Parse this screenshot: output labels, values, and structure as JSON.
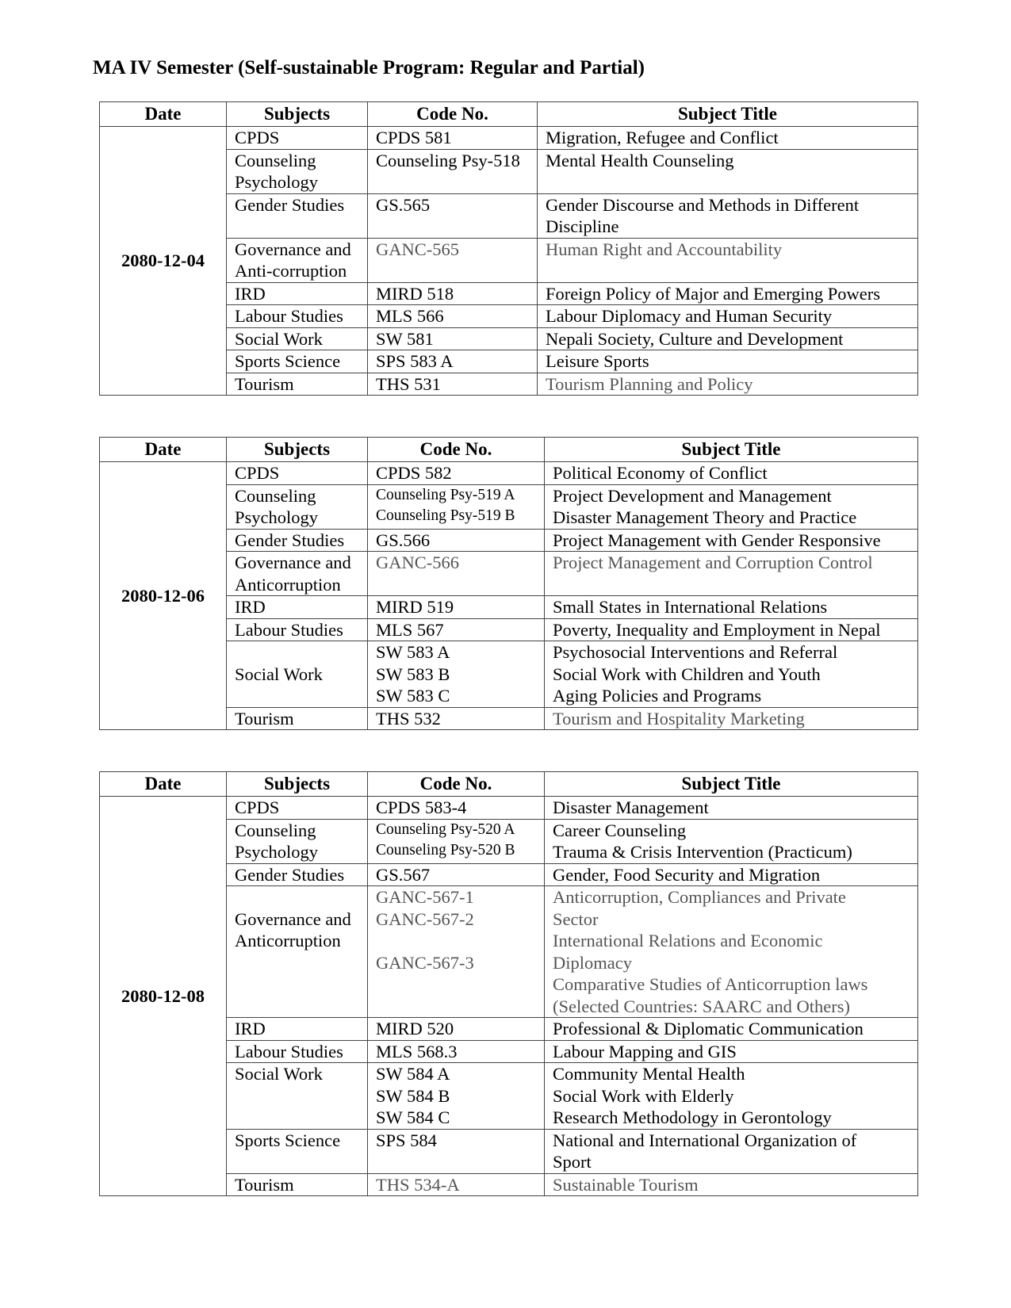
{
  "title": "MA IV Semester (Self-sustainable Program: Regular and Partial)",
  "headers": [
    "Date",
    "Subjects",
    "Code No.",
    "Subject Title"
  ],
  "tables": [
    {
      "date": "2080-12-04",
      "rows": [
        {
          "subject": [
            "CPDS"
          ],
          "code": [
            "CPDS 581"
          ],
          "title": [
            "Migration, Refugee and Conflict"
          ]
        },
        {
          "subject": [
            "Counseling",
            "Psychology"
          ],
          "code": [
            "Counseling Psy-518"
          ],
          "title": [
            "Mental Health Counseling"
          ]
        },
        {
          "subject": [
            "Gender Studies"
          ],
          "code": [
            "GS.565"
          ],
          "title": [
            "Gender Discourse and Methods in Different",
            "Discipline"
          ]
        },
        {
          "subject": [
            "Governance and",
            "Anti-corruption"
          ],
          "code": [
            "GANC-565"
          ],
          "title": [
            "Human Right and Accountability"
          ],
          "grey": true
        },
        {
          "subject": [
            "IRD"
          ],
          "code": [
            "MIRD 518"
          ],
          "title": [
            "Foreign Policy of Major and Emerging Powers"
          ]
        },
        {
          "subject": [
            "Labour Studies"
          ],
          "code": [
            "MLS 566"
          ],
          "title": [
            "Labour Diplomacy and Human Security"
          ]
        },
        {
          "subject": [
            "Social Work"
          ],
          "code": [
            "SW 581"
          ],
          "title": [
            "Nepali Society, Culture and Development"
          ]
        },
        {
          "subject": [
            "Sports Science"
          ],
          "code": [
            "SPS 583 A"
          ],
          "title": [
            "Leisure Sports"
          ]
        },
        {
          "subject": [
            "Tourism"
          ],
          "code": [
            "THS 531"
          ],
          "title": [
            "Tourism Planning and Policy"
          ],
          "greyTitle": true
        }
      ]
    },
    {
      "date": "2080-12-06",
      "rows": [
        {
          "subject": [
            "CPDS"
          ],
          "code": [
            "CPDS 582"
          ],
          "title": [
            "Political Economy of Conflict"
          ]
        },
        {
          "subject": [
            "Counseling",
            "Psychology"
          ],
          "code": [
            "Counseling Psy-519 A",
            "Counseling Psy-519 B"
          ],
          "smallCode": true,
          "title": [
            "Project Development and Management",
            "Disaster Management Theory and Practice"
          ]
        },
        {
          "subject": [
            "Gender Studies"
          ],
          "code": [
            "GS.566"
          ],
          "title": [
            "Project Management with Gender Responsive"
          ]
        },
        {
          "subject": [
            "Governance and",
            "Anticorruption"
          ],
          "code": [
            "GANC-566"
          ],
          "title": [
            "Project Management and Corruption Control"
          ],
          "grey": true
        },
        {
          "subject": [
            "IRD"
          ],
          "code": [
            "MIRD 519"
          ],
          "title": [
            "Small States in International Relations"
          ]
        },
        {
          "subject": [
            "Labour Studies"
          ],
          "code": [
            "MLS 567"
          ],
          "title": [
            "Poverty, Inequality and Employment in Nepal"
          ]
        },
        {
          "subject": [
            "",
            "Social Work"
          ],
          "code": [
            "SW 583 A",
            "SW 583 B",
            "SW 583 C"
          ],
          "title": [
            "Psychosocial Interventions and Referral",
            "Social Work with Children and Youth",
            "Aging Policies and Programs"
          ]
        },
        {
          "subject": [
            "Tourism"
          ],
          "code": [
            "THS 532"
          ],
          "title": [
            "Tourism and Hospitality Marketing"
          ],
          "greyTitle": true
        }
      ]
    },
    {
      "date": "2080-12-08",
      "rows": [
        {
          "subject": [
            "CPDS"
          ],
          "code": [
            "CPDS 583-4"
          ],
          "title": [
            "Disaster Management"
          ]
        },
        {
          "subject": [
            "Counseling",
            "Psychology"
          ],
          "code": [
            "Counseling Psy-520 A",
            "Counseling Psy-520 B"
          ],
          "smallCode": true,
          "title": [
            "Career Counseling",
            "Trauma & Crisis Intervention (Practicum)"
          ]
        },
        {
          "subject": [
            "Gender Studies"
          ],
          "code": [
            "GS.567"
          ],
          "title": [
            "Gender, Food Security and Migration"
          ]
        },
        {
          "subject": [
            "",
            "Governance and",
            "Anticorruption"
          ],
          "code": [
            "GANC-567-1",
            "GANC-567-2",
            "",
            "GANC-567-3"
          ],
          "title": [
            "Anticorruption, Compliances and Private",
            "Sector",
            "International Relations and Economic",
            "Diplomacy",
            "Comparative Studies of Anticorruption laws",
            "(Selected Countries: SAARC and Others)"
          ],
          "grey": true
        },
        {
          "subject": [
            "IRD"
          ],
          "code": [
            "MIRD 520"
          ],
          "title": [
            "Professional & Diplomatic Communication"
          ]
        },
        {
          "subject": [
            "Labour Studies"
          ],
          "code": [
            "MLS 568.3"
          ],
          "title": [
            "Labour Mapping and GIS"
          ]
        },
        {
          "subject": [
            "Social Work"
          ],
          "code": [
            "SW 584 A",
            "SW 584 B",
            "SW 584 C"
          ],
          "title": [
            "Community Mental Health",
            "Social Work with Elderly",
            "Research Methodology in Gerontology"
          ]
        },
        {
          "subject": [
            "Sports Science"
          ],
          "code": [
            "SPS 584"
          ],
          "title": [
            "National and International Organization of",
            "Sport"
          ]
        },
        {
          "subject": [
            "Tourism"
          ],
          "code": [
            "THS 534-A"
          ],
          "title": [
            "Sustainable Tourism"
          ],
          "grey": true
        }
      ]
    }
  ]
}
